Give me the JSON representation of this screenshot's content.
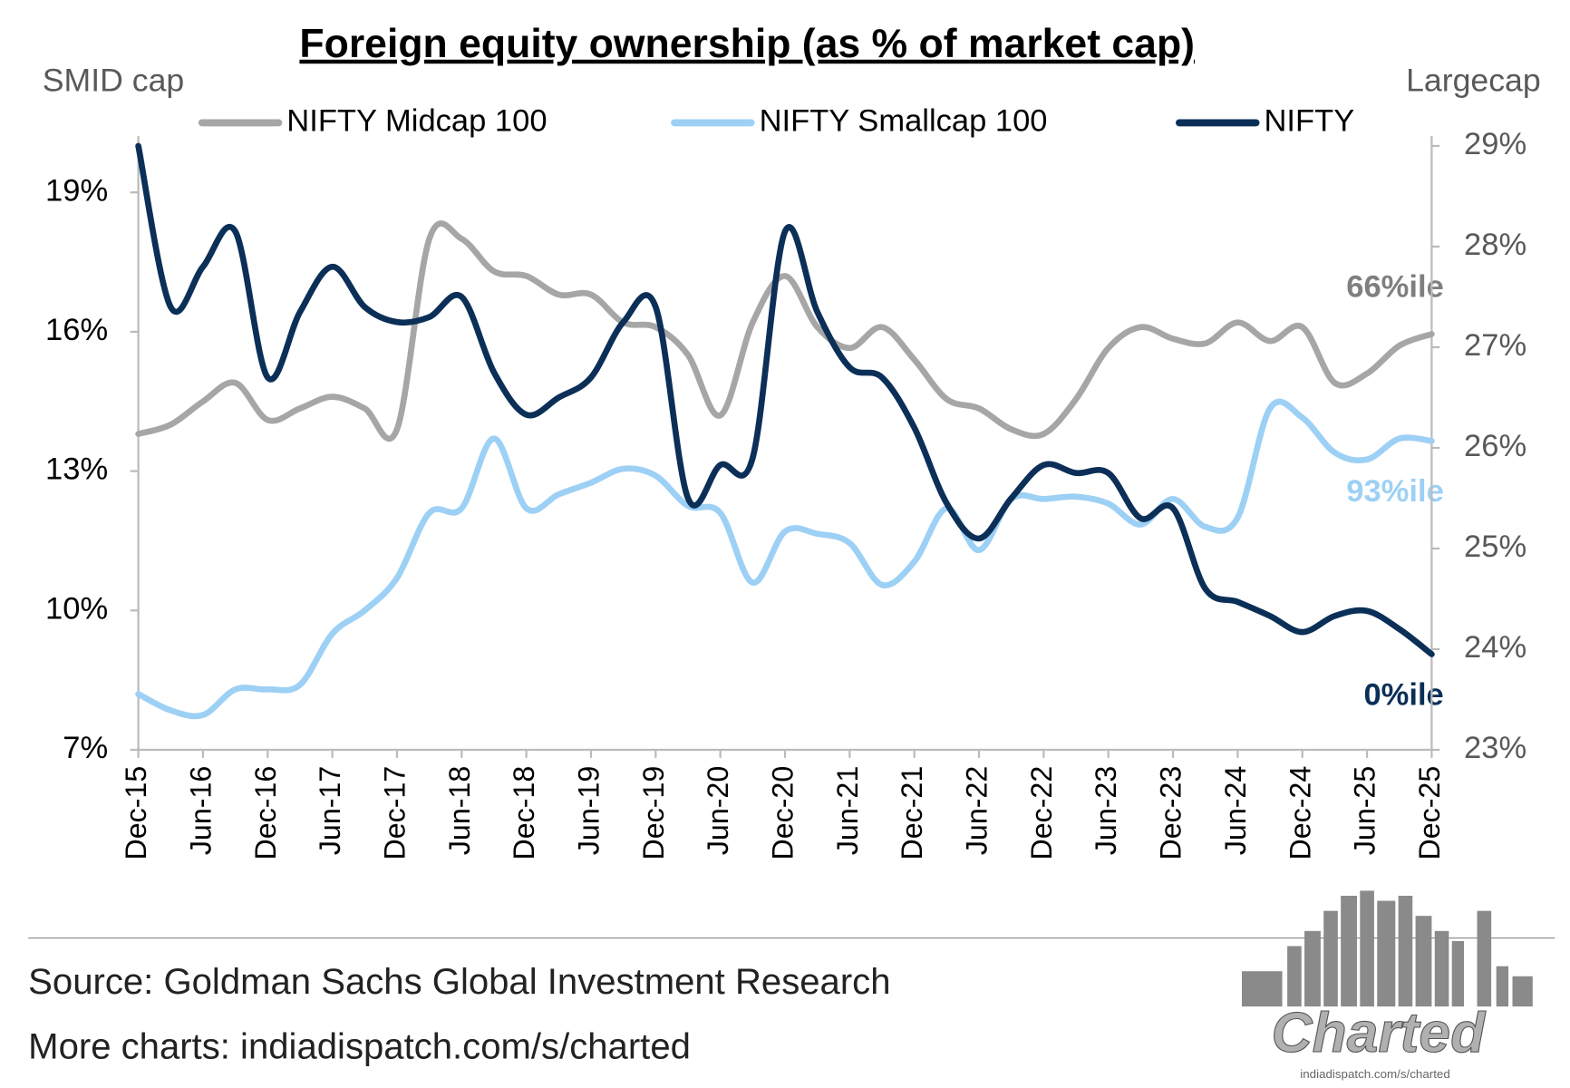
{
  "chart_data": {
    "type": "line",
    "title": "Foreign equity ownership (as % of market cap)",
    "y_axis_label": "SMID cap",
    "y2_axis_label": "Largecap",
    "categories": [
      "Dec-15",
      null,
      "Jun-16",
      null,
      "Dec-16",
      null,
      "Jun-17",
      null,
      "Dec-17",
      null,
      "Jun-18",
      null,
      "Dec-18",
      null,
      "Jun-19",
      null,
      "Dec-19",
      null,
      "Jun-20",
      null,
      "Dec-20",
      null,
      "Jun-21",
      null,
      "Dec-21",
      null,
      "Jun-22",
      null,
      "Dec-22",
      null,
      "Jun-23",
      null,
      "Dec-23",
      null,
      "Jun-24",
      null,
      "Dec-24",
      null,
      "Jun-25",
      null,
      "Dec-25"
    ],
    "series": [
      {
        "name": "NIFTY Midcap 100",
        "color": "#a6a6a6",
        "axis": "y",
        "values": [
          13.8,
          14.0,
          14.5,
          14.9,
          14.1,
          14.35,
          14.6,
          14.35,
          13.9,
          18.0,
          18.0,
          17.3,
          17.2,
          16.8,
          16.8,
          16.2,
          16.1,
          15.5,
          14.2,
          16.2,
          17.2,
          16.1,
          15.65,
          16.1,
          15.4,
          14.55,
          14.35,
          13.9,
          13.8,
          14.55,
          15.65,
          16.1,
          15.85,
          15.75,
          16.2,
          15.8,
          16.1,
          14.9,
          15.1,
          15.7,
          15.95
        ]
      },
      {
        "name": "NIFTY Smallcap 100",
        "color": "#9dd0f5",
        "axis": "y",
        "values": [
          8.2,
          7.85,
          7.75,
          8.3,
          8.3,
          8.4,
          9.5,
          10.0,
          10.7,
          12.1,
          12.2,
          13.7,
          12.2,
          12.5,
          12.75,
          13.05,
          12.9,
          12.25,
          12.1,
          10.6,
          11.7,
          11.65,
          11.45,
          10.55,
          11.05,
          12.2,
          11.3,
          12.4,
          12.4,
          12.45,
          12.3,
          11.85,
          12.4,
          11.8,
          12.0,
          14.35,
          14.15,
          13.4,
          13.25,
          13.7,
          13.65
        ]
      },
      {
        "name": "NIFTY",
        "color": "#0b2f57",
        "axis": "y2",
        "values": [
          29.0,
          27.4,
          27.8,
          28.15,
          26.7,
          27.35,
          27.8,
          27.4,
          27.25,
          27.3,
          27.5,
          26.75,
          26.33,
          26.5,
          26.7,
          27.25,
          27.4,
          25.5,
          25.83,
          25.9,
          28.15,
          27.35,
          26.8,
          26.7,
          26.2,
          25.45,
          25.1,
          25.5,
          25.83,
          25.75,
          25.75,
          25.3,
          25.4,
          24.6,
          24.47,
          24.33,
          24.17,
          24.33,
          24.38,
          24.2,
          23.95
        ]
      }
    ],
    "ylim": [
      7,
      20
    ],
    "yticks": [
      {
        "value": 7,
        "label": "7%"
      },
      {
        "value": 10,
        "label": "10%"
      },
      {
        "value": 13,
        "label": "13%"
      },
      {
        "value": 16,
        "label": "16%"
      },
      {
        "value": 19,
        "label": "19%"
      }
    ],
    "y2lim": [
      23,
      29
    ],
    "y2ticks": [
      {
        "value": 23,
        "label": "23%"
      },
      {
        "value": 24,
        "label": "24%"
      },
      {
        "value": 25,
        "label": "25%"
      },
      {
        "value": 26,
        "label": "26%"
      },
      {
        "value": 27,
        "label": "27%"
      },
      {
        "value": 28,
        "label": "28%"
      },
      {
        "value": 29,
        "label": "29%"
      }
    ],
    "annotations": [
      "66%ile",
      "93%ile",
      "0%ile"
    ],
    "grid": false,
    "legend": "top"
  },
  "footer": {
    "source": "Source: Goldman Sachs Global Investment Research",
    "more": "More charts: indiadispatch.com/s/charted",
    "logo": "Charted",
    "logo_url": "indiadispatch.com/s/charted"
  }
}
